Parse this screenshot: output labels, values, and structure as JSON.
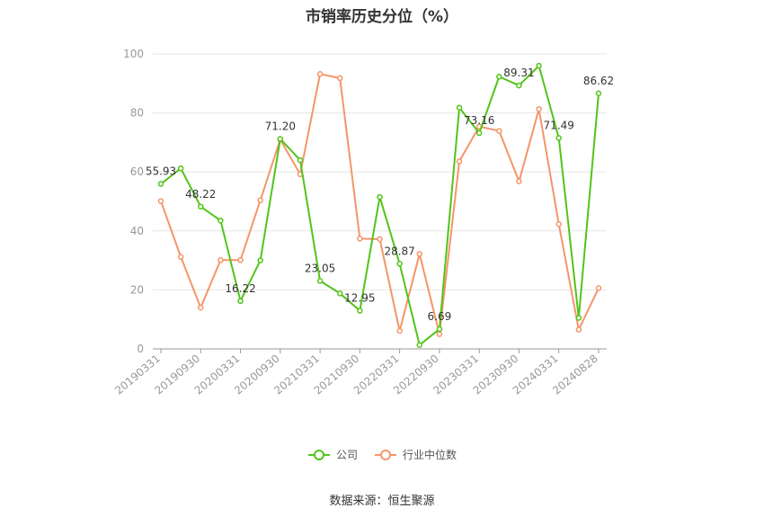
{
  "chart_data": {
    "type": "line",
    "title": "市销率历史分位（%）",
    "ylim": [
      0,
      100
    ],
    "yticks": [
      0,
      20,
      40,
      60,
      80,
      100
    ],
    "grid": true,
    "legend_position": "bottom",
    "x_tick_labels": [
      "20190331",
      "20190930",
      "20200331",
      "20200930",
      "20210331",
      "20210930",
      "20220331",
      "20220930",
      "20230331",
      "20230930",
      "20240331",
      "20240828"
    ],
    "x": [
      "20190331",
      "20190630",
      "20190930",
      "20191231",
      "20200331",
      "20200630",
      "20200930",
      "20201231",
      "20210331",
      "20210630",
      "20210930",
      "20211231",
      "20220331",
      "20220630",
      "20220930",
      "20221231",
      "20230331",
      "20230630",
      "20230930",
      "20231231",
      "20240331",
      "20240630",
      "20240828"
    ],
    "series": [
      {
        "name": "公司",
        "color": "#52c41a",
        "values": [
          55.93,
          61.2,
          48.22,
          43.5,
          16.22,
          30.0,
          71.2,
          64.0,
          23.05,
          18.8,
          12.95,
          51.5,
          28.87,
          1.3,
          6.69,
          81.8,
          73.16,
          92.3,
          89.31,
          96.0,
          71.49,
          10.5,
          86.62
        ],
        "labels": {
          "0": "55.93",
          "2": "48.22",
          "4": "16.22",
          "6": "71.20",
          "8": "23.05",
          "10": "12.95",
          "12": "28.87",
          "14": "6.69",
          "16": "73.16",
          "18": "89.31",
          "20": "71.49",
          "22": "86.62"
        }
      },
      {
        "name": "行业中位数",
        "color": "#f4956a",
        "values": [
          50.1,
          31.2,
          14.0,
          30.1,
          30.1,
          50.4,
          71.0,
          59.2,
          93.2,
          91.8,
          37.4,
          37.2,
          6.1,
          32.2,
          5.0,
          63.6,
          75.4,
          73.9,
          56.8,
          81.3,
          42.3,
          6.5,
          20.6
        ]
      }
    ]
  },
  "source": "数据来源：恒生聚源"
}
